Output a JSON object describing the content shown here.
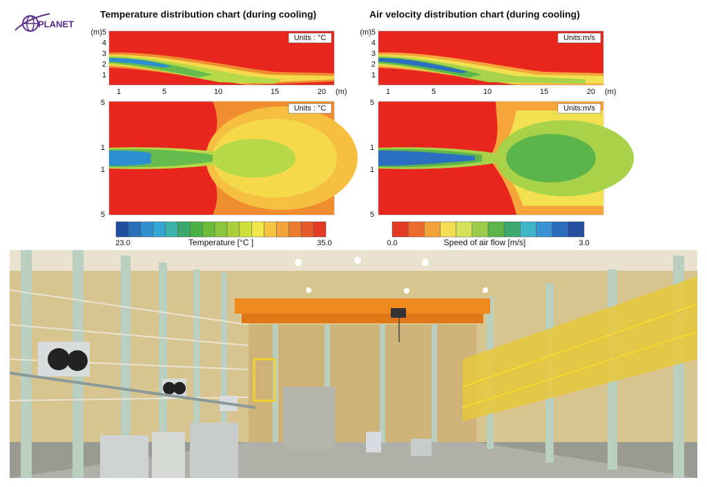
{
  "logo": {
    "text": "PLANET"
  },
  "panels": [
    {
      "title": "Temperature distribution chart (during cooling)",
      "side_y_labels": [
        "(m)5",
        "4",
        "3",
        "2",
        "1"
      ],
      "side_x_labels": [
        "1",
        "5",
        "10",
        "15",
        "20",
        "(m)"
      ],
      "side_units": "Units : °C",
      "plan_y_labels": [
        "5",
        "1",
        "1",
        "5"
      ],
      "plan_units": "Units : °C",
      "colorbar": {
        "min": "23.0",
        "label": "Temperature [°C ]",
        "max": "35.0"
      }
    },
    {
      "title": "Air velocity distribution chart (during cooling)",
      "side_y_labels": [
        "(m)5",
        "4",
        "3",
        "2",
        "1"
      ],
      "side_x_labels": [
        "1",
        "5",
        "10",
        "15",
        "20",
        "(m)"
      ],
      "side_units": "Units:m/s",
      "plan_y_labels": [
        "5",
        "1",
        "1",
        "5"
      ],
      "plan_units": "Units:m/s",
      "colorbar": {
        "min": "0.0",
        "label": "Speed of air flow [m/s]",
        "max": "3.0"
      }
    }
  ]
}
